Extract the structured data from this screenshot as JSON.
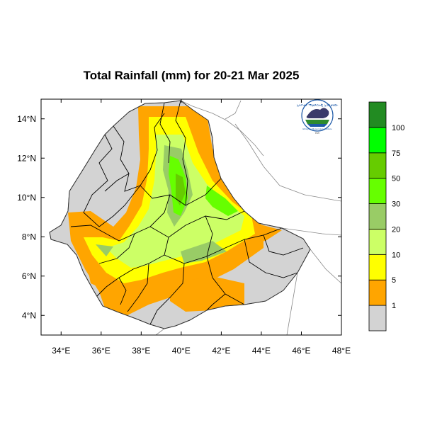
{
  "title": "Total Rainfall (mm) for 20-21 Mar 2025",
  "map": {
    "lon_range": [
      33,
      48
    ],
    "lat_range": [
      3,
      15
    ],
    "lon_ticks": [
      "34°E",
      "36°E",
      "38°E",
      "40°E",
      "42°E",
      "44°E",
      "46°E",
      "48°E"
    ],
    "lat_ticks": [
      "14°N",
      "12°N",
      "10°N",
      "8°N",
      "6°N",
      "4°N"
    ],
    "background_color": "#ffffff",
    "no_rain_color": "#d3d3d3"
  },
  "legend": {
    "labels": [
      "1",
      "5",
      "10",
      "20",
      "30",
      "50",
      "75",
      "100"
    ],
    "colors": [
      "#d3d3d3",
      "#ffa500",
      "#ffff00",
      "#ccff66",
      "#99cc66",
      "#66ff00",
      "#66cc00",
      "#00ff00",
      "#228b22"
    ]
  },
  "logo": {
    "arc_text": "ኢትዮጵያ ሚቲዎሮሎጂ ኢንስቲትዩት",
    "bottom_text": "Ethiopian Meteorology Institute",
    "ribbon_text": "EMI"
  }
}
